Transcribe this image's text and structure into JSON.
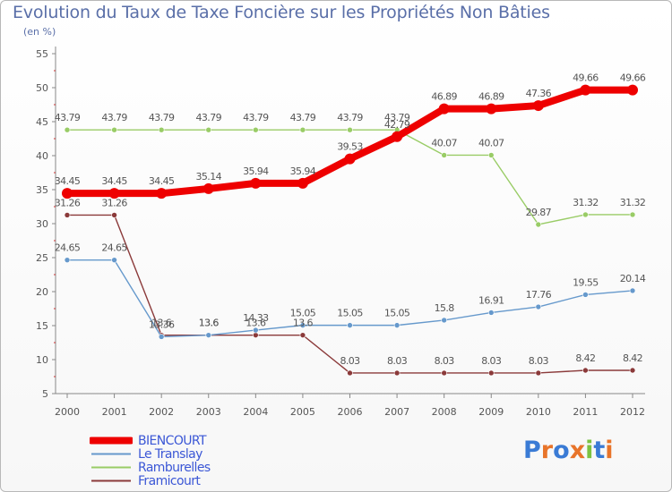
{
  "title": "Evolution du Taux de Taxe Foncière sur les Propriétés Non Bâties",
  "unit": "(en %)",
  "logo_text": "Proxiti",
  "chart_data": {
    "type": "line",
    "title": "Evolution du Taux de Taxe Foncière sur les Propriétés Non Bâties",
    "ylabel": "(en %)",
    "xlabel": "",
    "categories": [
      "2000",
      "2001",
      "2002",
      "2003",
      "2004",
      "2005",
      "2006",
      "2007",
      "2008",
      "2009",
      "2010",
      "2011",
      "2012"
    ],
    "ylim": [
      5,
      55
    ],
    "yticks": [
      5,
      10,
      15,
      20,
      25,
      30,
      35,
      40,
      45,
      50,
      55
    ],
    "grid": false,
    "legend_position": "bottom-left",
    "series": [
      {
        "name": "BIENCOURT",
        "color": "#ee0000",
        "values": [
          34.45,
          34.45,
          34.45,
          35.14,
          35.94,
          35.94,
          39.53,
          42.79,
          46.89,
          46.89,
          47.36,
          49.66,
          49.66
        ],
        "labels": [
          "34.45",
          "34.45",
          "34.45",
          "35.14",
          "35.94",
          "35.94",
          "39.53",
          "42.79",
          "46.89",
          "46.89",
          "47.36",
          "49.66",
          "49.66"
        ]
      },
      {
        "name": "Le Translay",
        "color": "#6699cc",
        "values": [
          24.65,
          24.65,
          13.36,
          13.6,
          14.33,
          15.05,
          15.05,
          15.05,
          15.8,
          16.91,
          17.76,
          19.55,
          20.14
        ],
        "labels": [
          "24.65",
          "24.65",
          "13.36",
          "13.6",
          "14.33",
          "15.05",
          "15.05",
          "15.05",
          "15.8",
          "16.91",
          "17.76",
          "19.55",
          "20.14"
        ]
      },
      {
        "name": "Ramburelles",
        "color": "#99cc66",
        "values": [
          43.79,
          43.79,
          43.79,
          43.79,
          43.79,
          43.79,
          43.79,
          43.79,
          40.07,
          40.07,
          29.87,
          31.32,
          31.32
        ],
        "labels": [
          "43.79",
          "43.79",
          "43.79",
          "43.79",
          "43.79",
          "43.79",
          "43.79",
          "43.79",
          "40.07",
          "40.07",
          "29.87",
          "31.32",
          "31.32"
        ]
      },
      {
        "name": "Framicourt",
        "color": "#8b3a3a",
        "values": [
          31.26,
          31.26,
          13.6,
          13.6,
          13.6,
          13.6,
          8.03,
          8.03,
          8.03,
          8.03,
          8.03,
          8.42,
          8.42
        ],
        "labels": [
          "31.26",
          "31.26",
          "13.6",
          "13.6",
          "13.6",
          "13.6",
          "8.03",
          "8.03",
          "8.03",
          "8.03",
          "8.03",
          "8.42",
          "8.42"
        ]
      }
    ]
  }
}
